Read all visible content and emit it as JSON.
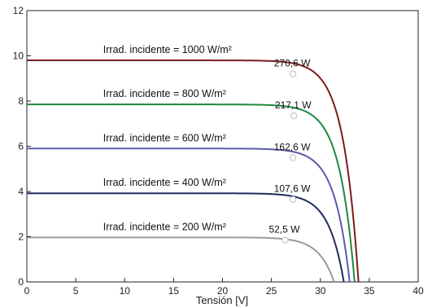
{
  "chart_data": {
    "type": "line",
    "xlabel": "Tensión [V]",
    "ylabel": "",
    "xlim": [
      0,
      40
    ],
    "ylim": [
      0,
      12
    ],
    "xticks": [
      "0",
      "5",
      "10",
      "15",
      "20",
      "25",
      "30",
      "35",
      "40"
    ],
    "yticks": [
      "0",
      "2",
      "4",
      "6",
      "8",
      "10",
      "12"
    ],
    "grid": false,
    "series": [
      {
        "name": "Irrad. incidente = 1000 W/m²",
        "color": "#7a1c1c",
        "isc": 9.8,
        "voc": 33.9,
        "mpp": {
          "x": 27.2,
          "y": 9.2
        },
        "power_label": "270,6 W"
      },
      {
        "name": "Irrad. incidente = 800 W/m²",
        "color": "#1e8a3c",
        "isc": 7.85,
        "voc": 33.5,
        "mpp": {
          "x": 27.3,
          "y": 7.35
        },
        "power_label": "217,1 W"
      },
      {
        "name": "Irrad. incidente = 600 W/m²",
        "color": "#5a5ab0",
        "isc": 5.9,
        "voc": 33.0,
        "mpp": {
          "x": 27.2,
          "y": 5.5
        },
        "power_label": "162,6 W"
      },
      {
        "name": "Irrad. incidente = 400 W/m²",
        "color": "#1e2b5e",
        "isc": 3.92,
        "voc": 32.4,
        "mpp": {
          "x": 27.2,
          "y": 3.65
        },
        "power_label": "107,6 W"
      },
      {
        "name": "Irrad. incidente = 200 W/m²",
        "color": "#9a9a9a",
        "isc": 1.97,
        "voc": 31.4,
        "mpp": {
          "x": 26.4,
          "y": 1.85
        },
        "power_label": "52,5 W"
      }
    ]
  }
}
